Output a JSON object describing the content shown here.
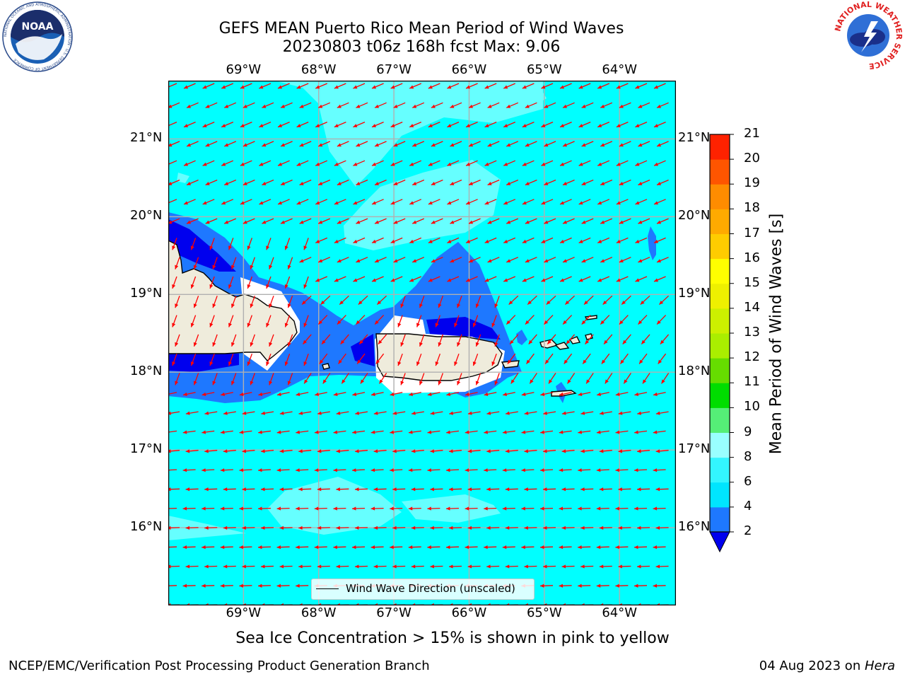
{
  "title": {
    "line1": "GEFS MEAN Puerto Rico Mean Period of Wind Waves",
    "line2": "20230803 t06z 168h fcst   Max: 9.06"
  },
  "map": {
    "lon_ticks": [
      "69°W",
      "68°W",
      "67°W",
      "66°W",
      "65°W",
      "64°W"
    ],
    "lat_ticks": [
      "21°N",
      "20°N",
      "19°N",
      "18°N",
      "17°N",
      "16°N"
    ],
    "lon_range": [
      -70,
      -63.25
    ],
    "lat_range": [
      15,
      21.75
    ],
    "grid": true,
    "legend": {
      "label": "Wind Wave Direction (unscaled)",
      "position": "bottom-center"
    },
    "arrow_color": "#ff0000",
    "land_color": "#efecdc"
  },
  "colorbar": {
    "title": "Mean Period of Wind Waves [s]",
    "ticks": [
      "2",
      "4",
      "6",
      "8",
      "9",
      "10",
      "11",
      "12",
      "13",
      "14",
      "15",
      "16",
      "17",
      "18",
      "19",
      "20",
      "21"
    ],
    "colors": [
      "#1e78ff",
      "#00e5ff",
      "#33f5ff",
      "#99ffff",
      "#55ee77",
      "#00dd00",
      "#66dd00",
      "#aaee00",
      "#ccf000",
      "#eef000",
      "#ffff00",
      "#ffcc00",
      "#ffaa00",
      "#ff8c00",
      "#ff5500",
      "#ff2200",
      "#ff0000"
    ],
    "under_color": "#0000ee"
  },
  "note": "Sea Ice Concentration > 15% is shown in pink to yellow",
  "footer": {
    "left": "NCEP/EMC/Verification Post Processing Product Generation Branch",
    "right_date": "04 Aug 2023 on ",
    "right_machine": "Hera"
  },
  "logos": {
    "noaa_text": "NOAA",
    "noaa_ring": "NATIONAL OCEANIC AND ATMOSPHERIC ADMINISTRATION · U.S. DEPARTMENT OF COMMERCE",
    "nws_ring": "NATIONAL WEATHER SERVICE"
  }
}
